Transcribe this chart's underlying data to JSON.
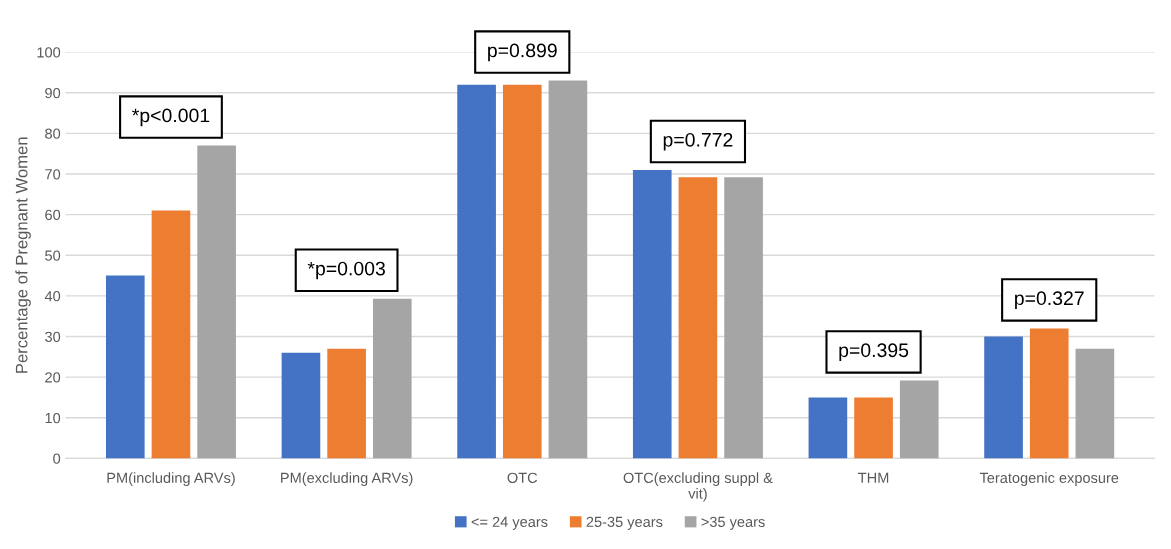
{
  "chart_data": {
    "type": "bar",
    "ylabel": "Percentage of Pregnant Women",
    "categories": [
      "PM(including ARVs)",
      "PM(excluding ARVs)",
      "OTC",
      "OTC(excluding suppl & vit)",
      "THM",
      "Teratogenic exposure"
    ],
    "series": [
      {
        "name": "<= 24 years",
        "color": "#4472c4",
        "values": [
          45,
          26,
          92,
          71,
          15,
          30
        ]
      },
      {
        "name": "25-35 years",
        "color": "#ed7d31",
        "values": [
          61,
          27,
          92,
          69.2,
          15,
          32
        ]
      },
      {
        "name": ">35 years",
        "color": "#a5a5a5",
        "values": [
          77,
          39.3,
          93,
          69.2,
          19.2,
          27
        ]
      }
    ],
    "ylim": [
      0,
      100
    ],
    "yticks": [
      0,
      10,
      20,
      30,
      40,
      50,
      60,
      70,
      80,
      90,
      100
    ],
    "grid": "y",
    "legend": "bottom",
    "annotations": [
      "*p<0.001",
      "*p=0.003",
      "p=0.899",
      "p=0.772",
      "p=0.395",
      "p=0.327"
    ]
  }
}
